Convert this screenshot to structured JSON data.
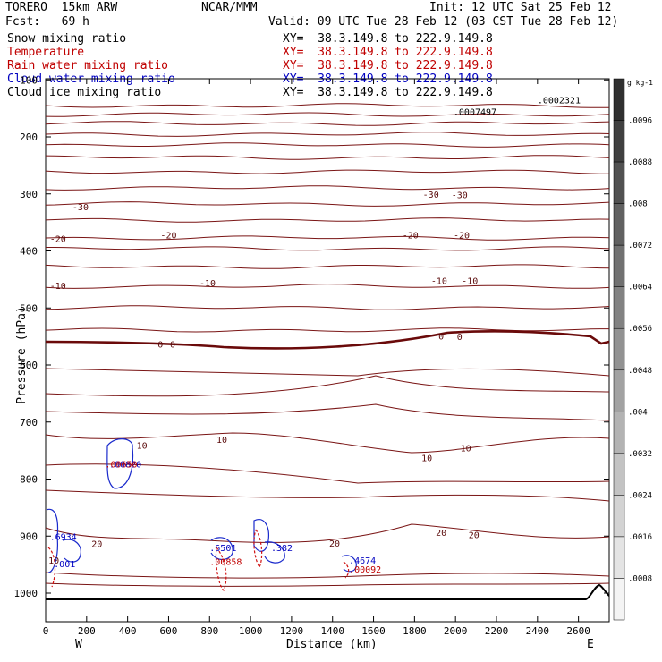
{
  "header": {
    "model": "TORERO  15km ARW",
    "org": "NCAR/MMM",
    "init": "Init: 12 UTC Sat 25 Feb 12",
    "fcst": "Fcst:   69 h",
    "valid": "Valid: 09 UTC Tue 28 Feb 12 (03 CST Tue 28 Feb 12)"
  },
  "fields": [
    {
      "name": "Snow mixing ratio",
      "xy": "XY=  38.3.149.8 to 222.9.149.8",
      "color": "#000000"
    },
    {
      "name": "Temperature",
      "xy": "XY=  38.3.149.8 to 222.9.149.8",
      "color": "#c00000"
    },
    {
      "name": "Rain water mixing ratio",
      "xy": "XY=  38.3.149.8 to 222.9.149.8",
      "color": "#c00000"
    },
    {
      "name": "Cloud water mixing ratio",
      "xy": "XY=  38.3.149.8 to 222.9.149.8",
      "color": "#0000c0"
    },
    {
      "name": "Cloud ice mixing ratio",
      "xy": "XY=  38.3.149.8 to 222.9.149.8",
      "color": "#000000"
    }
  ],
  "chart_data": {
    "type": "cross-section contour",
    "xlabel": "Distance (km)",
    "ylabel": "Pressure (hPa)",
    "xlim": [
      0,
      2750
    ],
    "ylim": [
      1050,
      100
    ],
    "x_ticks": [
      0,
      200,
      400,
      600,
      800,
      1000,
      1200,
      1400,
      1600,
      1800,
      2000,
      2200,
      2400,
      2600
    ],
    "y_ticks": [
      100,
      200,
      300,
      400,
      500,
      600,
      700,
      800,
      900,
      1000
    ],
    "x_end_labels": {
      "left": "W",
      "right": "E"
    },
    "temperature_labels": [
      {
        "text": "-30",
        "x": 170,
        "p": 322
      },
      {
        "text": "-30",
        "x": 1880,
        "p": 300
      },
      {
        "text": "-30",
        "x": 2020,
        "p": 301
      },
      {
        "text": "-20",
        "x": 60,
        "p": 378
      },
      {
        "text": "-20",
        "x": 600,
        "p": 372
      },
      {
        "text": "-20",
        "x": 1780,
        "p": 372
      },
      {
        "text": "-20",
        "x": 2030,
        "p": 372
      },
      {
        "text": "-10",
        "x": 60,
        "p": 460
      },
      {
        "text": "-10",
        "x": 790,
        "p": 456
      },
      {
        "text": "-10",
        "x": 1920,
        "p": 452
      },
      {
        "text": "-10",
        "x": 2070,
        "p": 452
      },
      {
        "text": "0",
        "x": 560,
        "p": 563
      },
      {
        "text": "0",
        "x": 620,
        "p": 563
      },
      {
        "text": "0",
        "x": 1930,
        "p": 549
      },
      {
        "text": "0",
        "x": 2020,
        "p": 550
      },
      {
        "text": "10",
        "x": 470,
        "p": 740
      },
      {
        "text": "10",
        "x": 860,
        "p": 730
      },
      {
        "text": "10",
        "x": 1860,
        "p": 762
      },
      {
        "text": "10",
        "x": 2050,
        "p": 745
      },
      {
        "text": "20",
        "x": 250,
        "p": 913
      },
      {
        "text": "20",
        "x": 1410,
        "p": 912
      },
      {
        "text": "20",
        "x": 1930,
        "p": 893
      },
      {
        "text": "20",
        "x": 2090,
        "p": 897
      },
      {
        "text": "10",
        "x": 40,
        "p": 942
      }
    ],
    "max_labels": [
      {
        "text": ".0002321",
        "x": 2400,
        "p": 135,
        "color": "#000000"
      },
      {
        "text": ".0007497",
        "x": 1990,
        "p": 155,
        "color": "#000000"
      },
      {
        "text": ".00820",
        "x": 310,
        "p": 773,
        "color": "#0000c0"
      },
      {
        "text": ".00650",
        "x": 290,
        "p": 773,
        "color": "#c00000"
      },
      {
        "text": ".6934",
        "x": 20,
        "p": 900,
        "color": "#0000c0"
      },
      {
        "text": ".001",
        "x": 40,
        "p": 948,
        "color": "#0000c0"
      },
      {
        "text": ".6501",
        "x": 800,
        "p": 920,
        "color": "#0000c0"
      },
      {
        "text": ".00858",
        "x": 800,
        "p": 944,
        "color": "#c00000"
      },
      {
        "text": ".382",
        "x": 1100,
        "p": 920,
        "color": "#0000c0"
      },
      {
        "text": ".4674",
        "x": 1480,
        "p": 942,
        "color": "#0000c0"
      },
      {
        "text": ".00092",
        "x": 1480,
        "p": 958,
        "color": "#c00000"
      }
    ],
    "colorbar": {
      "unit": "g kg-1",
      "ticks": [
        ".0096",
        ".0088",
        ".008",
        ".0072",
        ".0064",
        ".0056",
        ".0048",
        ".004",
        ".0032",
        ".0024",
        ".0016",
        ".0008"
      ],
      "dark_color": "#303030",
      "light_color": "#f4f4f4"
    },
    "grid": false
  }
}
